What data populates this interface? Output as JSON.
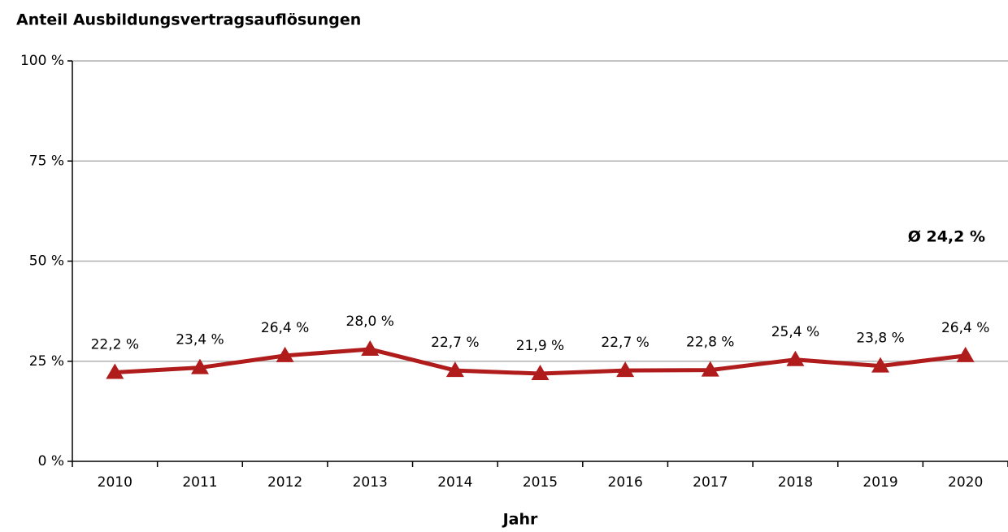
{
  "chart_data": {
    "type": "line",
    "title": "Anteil Ausbildungsvertragsauflösungen",
    "x_label": "Jahr",
    "annotation": "Ø 24,2 %",
    "categories": [
      "2010",
      "2011",
      "2012",
      "2013",
      "2014",
      "2015",
      "2016",
      "2017",
      "2018",
      "2019",
      "2020"
    ],
    "values": [
      22.2,
      23.4,
      26.4,
      28.0,
      22.7,
      21.9,
      22.7,
      22.8,
      25.4,
      23.8,
      26.4
    ],
    "value_labels": [
      "22,2 %",
      "23,4 %",
      "26,4 %",
      "28,0 %",
      "22,7 %",
      "21,9 %",
      "22,7 %",
      "22,8 %",
      "25,4 %",
      "23,8 %",
      "26,4 %"
    ],
    "color": "#b01c1c",
    "ylim": [
      0,
      100
    ],
    "yticks": [
      {
        "value": 0,
        "label": "0 %"
      },
      {
        "value": 25,
        "label": "25 %"
      },
      {
        "value": 50,
        "label": "50 %"
      },
      {
        "value": 75,
        "label": "75 %"
      },
      {
        "value": 100,
        "label": "100 %"
      }
    ],
    "grid": true
  }
}
